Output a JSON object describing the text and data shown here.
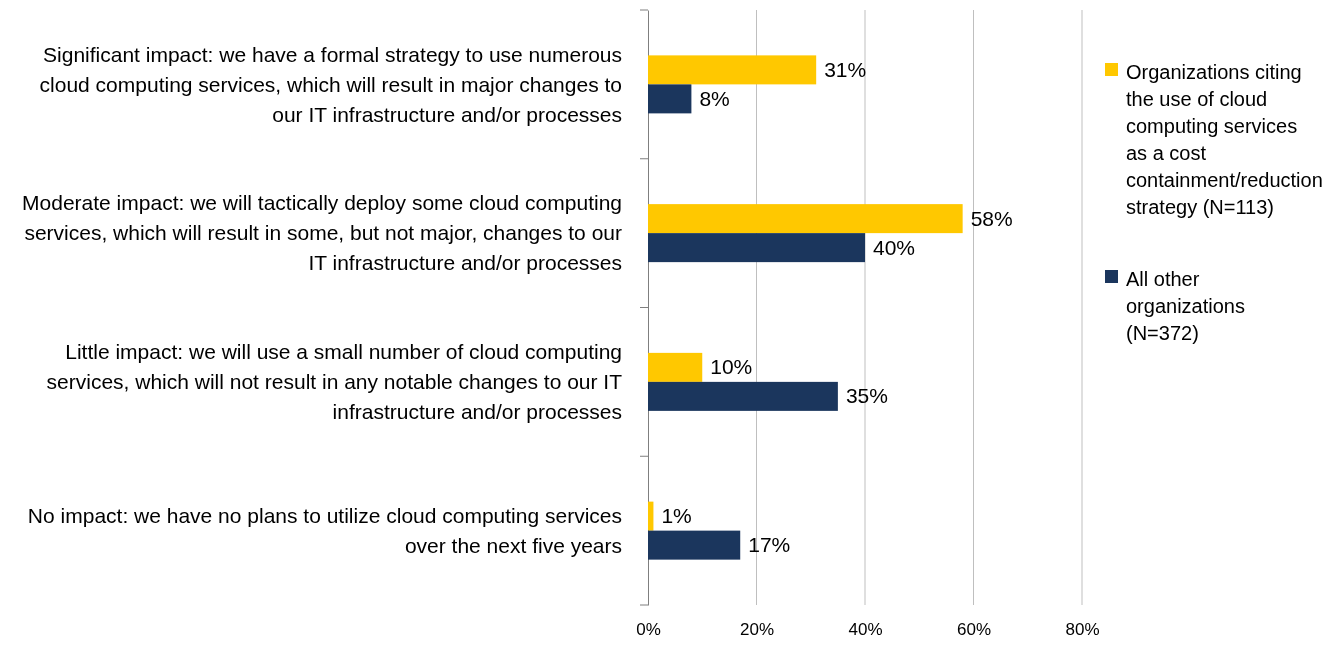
{
  "chart_data": {
    "type": "bar",
    "orientation": "horizontal",
    "categories": [
      "Significant impact: we have a formal strategy to use numerous cloud computing services, which will result in major changes to our IT infrastructure and/or processes",
      "Moderate impact: we will tactically deploy some cloud computing services, which will result in some, but not major, changes to our IT infrastructure and/or processes",
      "Little impact: we will use a small number of cloud computing services, which will not result in any notable changes to our IT infrastructure and/or processes",
      "No impact: we have no plans to utilize cloud computing services over the next five years"
    ],
    "series": [
      {
        "name": "Organizations citing the use of cloud computing services as a cost containment/reduction strategy (N=113)",
        "color": "#ffc800",
        "values": [
          31,
          58,
          10,
          1
        ],
        "value_labels": [
          "31%",
          "58%",
          "10%",
          "1%"
        ]
      },
      {
        "name": "All other organizations (N=372)",
        "color": "#1b365d",
        "values": [
          8,
          40,
          35,
          17
        ],
        "value_labels": [
          "8%",
          "40%",
          "35%",
          "17%"
        ]
      }
    ],
    "xlim": [
      0,
      80
    ],
    "xticks": [
      {
        "value": 0,
        "label": "0%"
      },
      {
        "value": 20,
        "label": "20%"
      },
      {
        "value": 40,
        "label": "40%"
      },
      {
        "value": 60,
        "label": "60%"
      },
      {
        "value": 80,
        "label": "80%"
      }
    ],
    "grid": "x",
    "legend": "right"
  }
}
